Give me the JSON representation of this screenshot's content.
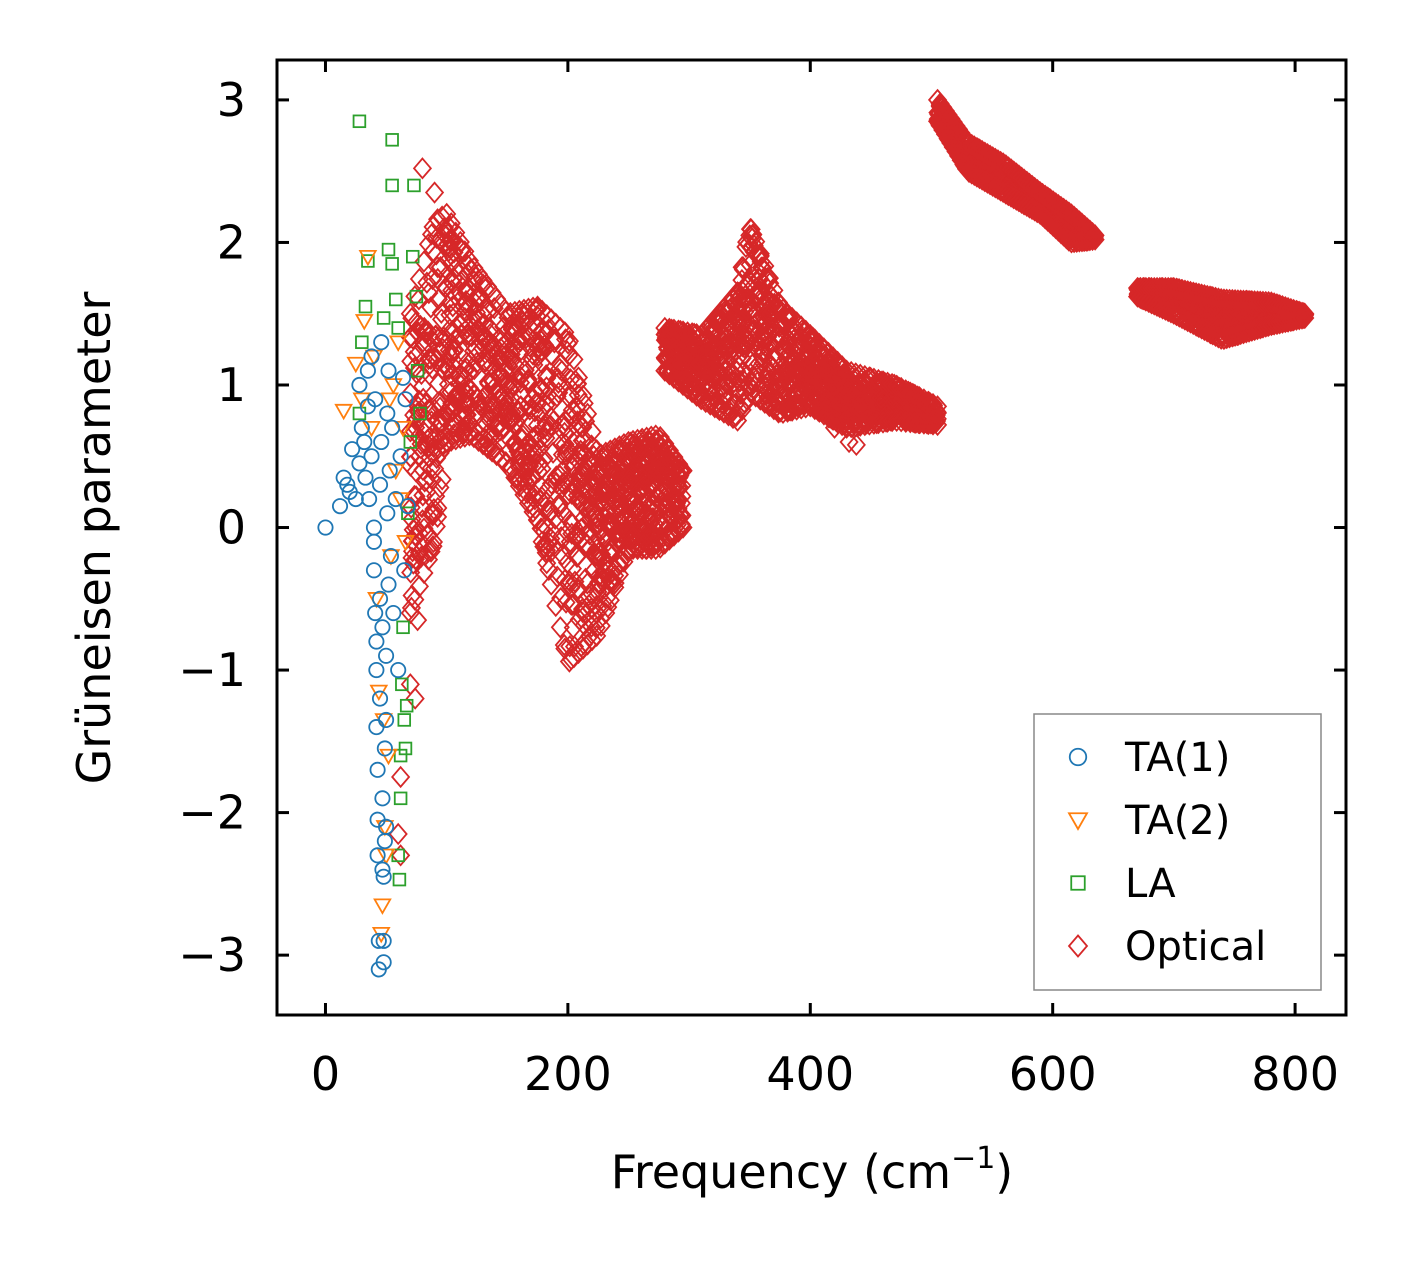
{
  "chart_data": {
    "type": "scatter",
    "title": "",
    "xlabel": "Frequency (cm",
    "xlabel_sup": "−1",
    "xlabel_close": ")",
    "ylabel": "Grüneisen parameter",
    "xlim": [
      -40,
      842
    ],
    "ylim": [
      -3.42,
      3.28
    ],
    "xticks": [
      {
        "value": 0,
        "label": "0"
      },
      {
        "value": 200,
        "label": "200"
      },
      {
        "value": 400,
        "label": "400"
      },
      {
        "value": 600,
        "label": "600"
      },
      {
        "value": 800,
        "label": "800"
      }
    ],
    "yticks": [
      {
        "value": 3,
        "label": "3"
      },
      {
        "value": 2,
        "label": "2"
      },
      {
        "value": 1,
        "label": "1"
      },
      {
        "value": 0,
        "label": "0"
      },
      {
        "value": -1,
        "label": "−1"
      },
      {
        "value": -2,
        "label": "−2"
      },
      {
        "value": -3,
        "label": "−3"
      }
    ],
    "grid": false,
    "legend_position": "lower-right",
    "series": [
      {
        "name": "TA(1)",
        "marker": "circle",
        "color": "#1f77b4",
        "points": [
          [
            0,
            0
          ],
          [
            12,
            0.15
          ],
          [
            15,
            0.35
          ],
          [
            18,
            0.3
          ],
          [
            20,
            0.25
          ],
          [
            22,
            0.55
          ],
          [
            25,
            0.2
          ],
          [
            28,
            0.45
          ],
          [
            28,
            1.0
          ],
          [
            30,
            0.7
          ],
          [
            32,
            0.6
          ],
          [
            33,
            0.35
          ],
          [
            35,
            0.85
          ],
          [
            35,
            1.1
          ],
          [
            36,
            0.2
          ],
          [
            38,
            1.2
          ],
          [
            38,
            0.5
          ],
          [
            40,
            0.0
          ],
          [
            40,
            -0.1
          ],
          [
            40,
            -0.3
          ],
          [
            41,
            -0.6
          ],
          [
            41,
            0.9
          ],
          [
            42,
            -0.8
          ],
          [
            42,
            -1.0
          ],
          [
            42,
            -1.4
          ],
          [
            43,
            -1.7
          ],
          [
            43,
            -2.05
          ],
          [
            43,
            -2.3
          ],
          [
            44,
            -2.9
          ],
          [
            44,
            -3.1
          ],
          [
            45,
            -1.2
          ],
          [
            45,
            -0.5
          ],
          [
            45,
            0.3
          ],
          [
            46,
            1.3
          ],
          [
            46,
            0.6
          ],
          [
            47,
            -2.4
          ],
          [
            47,
            -1.9
          ],
          [
            47,
            -0.7
          ],
          [
            48,
            -2.45
          ],
          [
            48,
            -3.05
          ],
          [
            48,
            -2.9
          ],
          [
            49,
            -2.2
          ],
          [
            49,
            -1.55
          ],
          [
            50,
            -2.1
          ],
          [
            50,
            -1.35
          ],
          [
            50,
            -0.9
          ],
          [
            51,
            0.1
          ],
          [
            51,
            0.8
          ],
          [
            52,
            -0.4
          ],
          [
            52,
            1.1
          ],
          [
            53,
            0.4
          ],
          [
            54,
            -0.2
          ],
          [
            55,
            0.7
          ],
          [
            56,
            -0.6
          ],
          [
            58,
            0.2
          ],
          [
            60,
            -1.0
          ],
          [
            62,
            0.5
          ],
          [
            64,
            1.05
          ],
          [
            65,
            -0.3
          ],
          [
            66,
            0.9
          ],
          [
            68,
            0.15
          ]
        ]
      },
      {
        "name": "TA(2)",
        "marker": "triangle",
        "color": "#ff7f0e",
        "points": [
          [
            15,
            0.82
          ],
          [
            25,
            1.15
          ],
          [
            30,
            0.9
          ],
          [
            32,
            1.45
          ],
          [
            35,
            1.9
          ],
          [
            38,
            0.7
          ],
          [
            40,
            1.2
          ],
          [
            42,
            -0.5
          ],
          [
            44,
            -1.15
          ],
          [
            46,
            -2.85
          ],
          [
            47,
            -2.65
          ],
          [
            48,
            -1.35
          ],
          [
            49,
            -2.1
          ],
          [
            50,
            -2.3
          ],
          [
            52,
            -1.6
          ],
          [
            53,
            0.9
          ],
          [
            54,
            -0.2
          ],
          [
            56,
            1.0
          ],
          [
            58,
            0.4
          ],
          [
            60,
            1.3
          ],
          [
            62,
            0.2
          ],
          [
            64,
            0.7
          ],
          [
            66,
            -0.1
          ]
        ]
      },
      {
        "name": "LA",
        "marker": "square",
        "color": "#2ca02c",
        "points": [
          [
            28,
            2.85
          ],
          [
            28,
            0.8
          ],
          [
            30,
            1.3
          ],
          [
            33,
            1.55
          ],
          [
            35,
            1.87
          ],
          [
            48,
            1.47
          ],
          [
            52,
            1.95
          ],
          [
            55,
            2.72
          ],
          [
            55,
            2.4
          ],
          [
            55,
            1.85
          ],
          [
            58,
            1.6
          ],
          [
            60,
            1.4
          ],
          [
            60,
            -2.3
          ],
          [
            61,
            -2.47
          ],
          [
            62,
            -1.9
          ],
          [
            62,
            -1.6
          ],
          [
            63,
            -1.1
          ],
          [
            64,
            -0.7
          ],
          [
            65,
            -1.35
          ],
          [
            66,
            -1.55
          ],
          [
            67,
            -1.25
          ],
          [
            68,
            0.1
          ],
          [
            70,
            0.6
          ],
          [
            72,
            1.9
          ],
          [
            73,
            2.4
          ],
          [
            75,
            1.62
          ],
          [
            76,
            1.1
          ],
          [
            78,
            0.8
          ]
        ]
      },
      {
        "name": "Optical",
        "marker": "diamond",
        "color": "#d62728",
        "outliers": [
          [
            80,
            2.52
          ],
          [
            90,
            2.35
          ],
          [
            60,
            -2.15
          ],
          [
            62,
            -2.3
          ],
          [
            62,
            -1.75
          ],
          [
            70,
            -1.1
          ],
          [
            74,
            -1.2
          ],
          [
            76,
            -0.65
          ],
          [
            325,
            1.2
          ],
          [
            420,
            0.7
          ],
          [
            432,
            0.6
          ],
          [
            438,
            0.58
          ]
        ],
        "regions": [
          {
            "x": [
              70,
              90,
              100,
              120,
              150,
              175,
              200,
              225,
              250,
              275,
              295
            ],
            "lower": [
              -0.6,
              -0.1,
              0.6,
              0.65,
              0.45,
              0.05,
              -0.95,
              -0.75,
              -0.15,
              -0.15,
              0.0
            ],
            "upper": [
              1.5,
              2.15,
              2.2,
              1.85,
              1.5,
              1.55,
              1.35,
              0.5,
              0.6,
              0.65,
              0.4
            ]
          },
          {
            "x": [
              280,
              310,
              340,
              350,
              375,
              400,
              430,
              470,
              505
            ],
            "lower": [
              1.1,
              0.9,
              0.75,
              0.95,
              0.8,
              0.85,
              0.7,
              0.75,
              0.72
            ],
            "upper": [
              1.4,
              1.35,
              1.65,
              2.12,
              1.55,
              1.35,
              1.1,
              1.0,
              0.85
            ]
          },
          {
            "x": [
              505,
              530,
              560,
              590,
              615,
              635
            ],
            "lower": [
              2.85,
              2.5,
              2.35,
              2.2,
              2.0,
              2.02
            ],
            "upper": [
              3.0,
              2.7,
              2.55,
              2.35,
              2.2,
              2.05
            ]
          },
          {
            "x": [
              670,
              700,
              740,
              780,
              808
            ],
            "lower": [
              1.62,
              1.5,
              1.32,
              1.42,
              1.47
            ],
            "upper": [
              1.68,
              1.68,
              1.6,
              1.58,
              1.5
            ]
          }
        ]
      }
    ]
  }
}
